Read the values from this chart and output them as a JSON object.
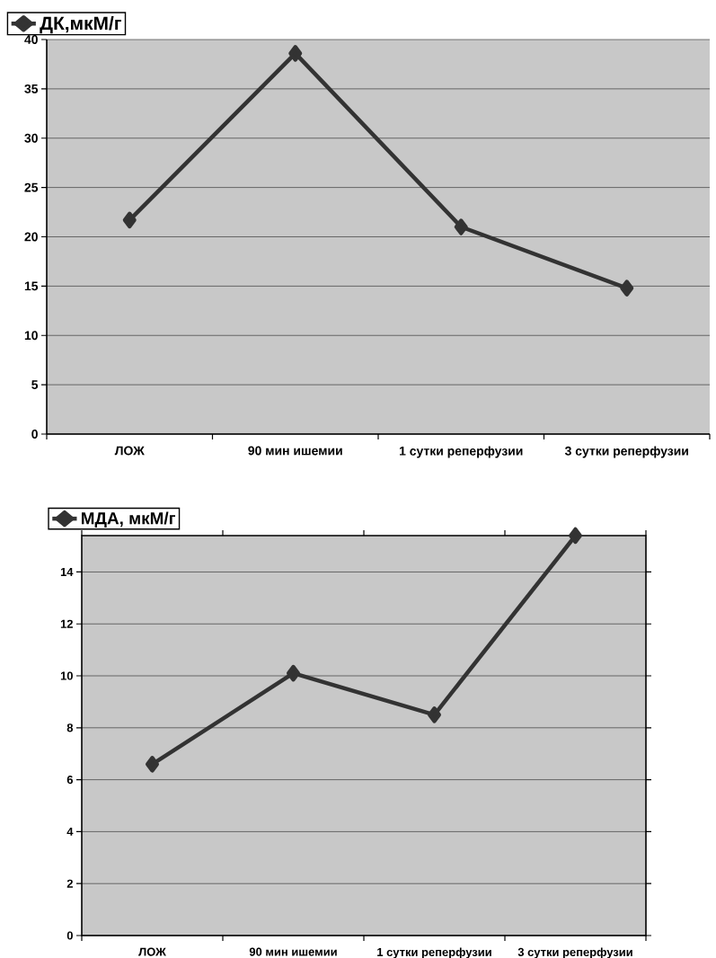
{
  "chart_data": [
    {
      "type": "line",
      "categories": [
        "ЛОЖ",
        "90 мин ишемии",
        "1 сутки реперфузии",
        "3 сутки реперфузии"
      ],
      "series": [
        {
          "name": "ДК,мкМ/г",
          "color": "#333333",
          "values": [
            21.7,
            38.6,
            21.0,
            14.8
          ]
        }
      ],
      "ylim": [
        0,
        40
      ],
      "yticks": [
        0,
        5,
        10,
        15,
        20,
        25,
        30,
        35,
        40
      ],
      "grid": "y",
      "legend": "top left",
      "marker": "diamond"
    },
    {
      "type": "line",
      "categories": [
        "ЛОЖ",
        "90 мин ишемии",
        "1 сутки реперфузии",
        "3 сутки реперфузии"
      ],
      "series": [
        {
          "name": "МДА, мкМ/г",
          "color": "#333333",
          "values": [
            6.6,
            10.1,
            8.5,
            15.4
          ]
        }
      ],
      "ylim": [
        0,
        15.4
      ],
      "yticks": [
        0,
        2,
        4,
        6,
        8,
        10,
        12,
        14
      ],
      "grid": "y",
      "legend": "top left",
      "marker": "diamond"
    }
  ]
}
